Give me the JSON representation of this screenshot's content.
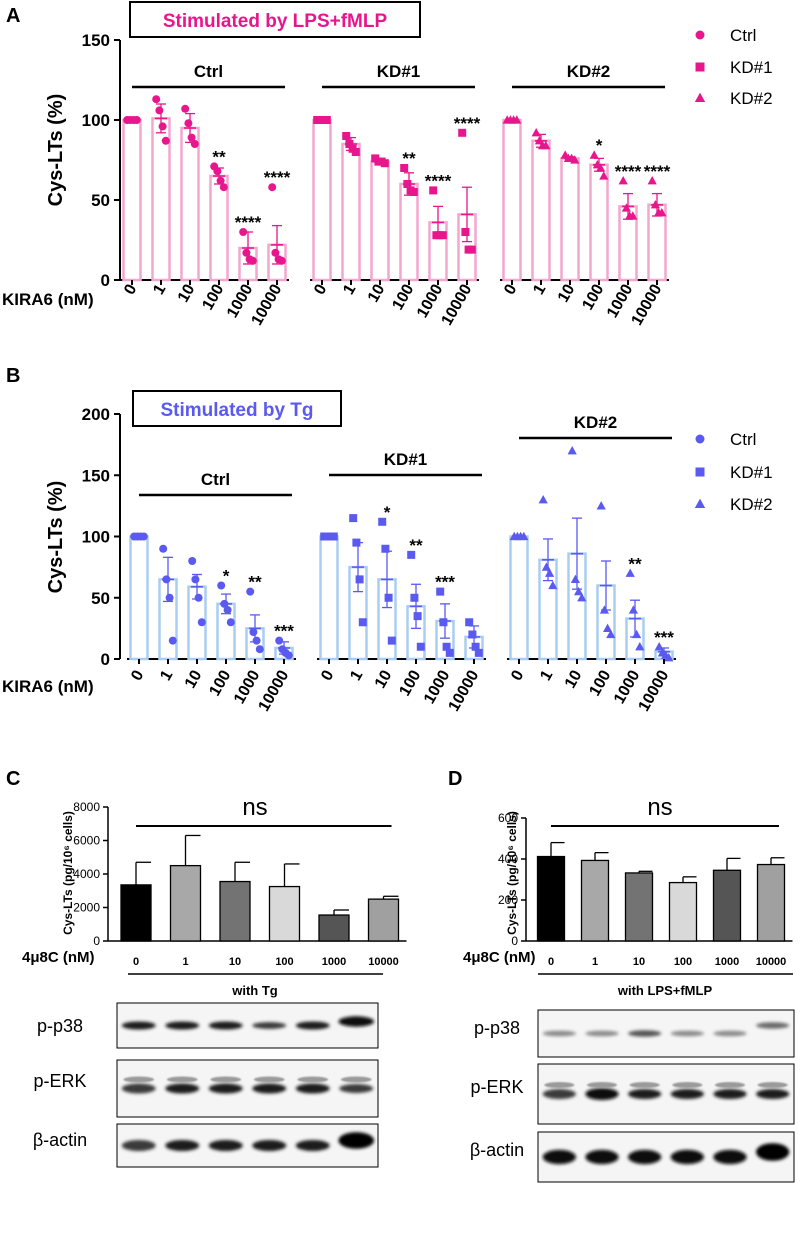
{
  "figure": {
    "panel_labels": [
      "A",
      "B",
      "C",
      "D"
    ],
    "colors": {
      "pink": "#e8168c",
      "pink_light": "#f4a6cf",
      "blue": "#5a5af0",
      "blue_light": "#a9cdf2"
    },
    "blots": {
      "C": [
        {
          "label": "p-p38",
          "style": "p38"
        },
        {
          "label": "p-ERK",
          "style": "erk"
        },
        {
          "label": "β-actin",
          "style": "actin"
        }
      ],
      "D": [
        {
          "label": "p-p38",
          "style": "p38faint"
        },
        {
          "label": "p-ERK",
          "style": "erk"
        },
        {
          "label": "β-actin",
          "style": "actin"
        }
      ]
    }
  },
  "chart_data": [
    {
      "panel": "A",
      "type": "bar",
      "title": "Stimulated by LPS+fMLP",
      "ylabel": "Cys-LTs (%)",
      "xlabel": "KIRA6 (nM)",
      "ylim": [
        0,
        150
      ],
      "yticks": [
        0,
        50,
        100,
        150
      ],
      "categories": [
        "0",
        "1",
        "10",
        "100",
        "1000",
        "10000"
      ],
      "legend": [
        "Ctrl",
        "KD#1",
        "KD#2"
      ],
      "groups": [
        {
          "name": "Ctrl",
          "marker": "circle",
          "values": [
            100,
            101,
            95,
            65,
            20,
            22
          ],
          "errors": [
            0,
            9,
            9,
            5,
            10,
            12
          ],
          "points": [
            [
              100,
              100,
              100,
              100
            ],
            [
              113,
              106,
              96,
              87
            ],
            [
              107,
              98,
              89,
              85
            ],
            [
              71,
              68,
              62,
              58
            ],
            [
              30,
              17,
              13,
              12
            ],
            [
              58,
              17,
              13,
              12
            ]
          ],
          "significance": [
            "",
            "",
            "",
            "**",
            "****",
            "****"
          ]
        },
        {
          "name": "KD#1",
          "marker": "square",
          "values": [
            100,
            85,
            74,
            60,
            36,
            41
          ],
          "errors": [
            0,
            4,
            2,
            7,
            10,
            17
          ],
          "points": [
            [
              100,
              100,
              100,
              100
            ],
            [
              90,
              85,
              82,
              80
            ],
            [
              76,
              74,
              74,
              73
            ],
            [
              70,
              60,
              56,
              55
            ],
            [
              56,
              28,
              28,
              28
            ],
            [
              92,
              30,
              19,
              19
            ]
          ],
          "significance": [
            "",
            "",
            "",
            "**",
            "****",
            "****"
          ]
        },
        {
          "name": "KD#2",
          "marker": "triangle",
          "values": [
            100,
            87,
            76,
            72,
            46,
            47
          ],
          "errors": [
            0,
            4,
            1,
            4,
            8,
            7
          ],
          "points": [
            [
              100,
              100,
              100,
              100
            ],
            [
              92,
              87,
              84,
              84
            ],
            [
              78,
              76,
              76,
              75
            ],
            [
              78,
              72,
              70,
              65
            ],
            [
              62,
              45,
              40,
              40
            ],
            [
              62,
              47,
              42,
              42
            ]
          ],
          "significance": [
            "",
            "",
            "",
            "*",
            "****",
            "****"
          ]
        }
      ]
    },
    {
      "panel": "B",
      "type": "bar",
      "title": "Stimulated by Tg",
      "ylabel": "Cys-LTs (%)",
      "xlabel": "KIRA6 (nM)",
      "ylim": [
        0,
        200
      ],
      "yticks": [
        0,
        50,
        100,
        150,
        200
      ],
      "categories": [
        "0",
        "1",
        "10",
        "100",
        "1000",
        "10000"
      ],
      "legend": [
        "Ctrl",
        "KD#1",
        "KD#2"
      ],
      "groups": [
        {
          "name": "Ctrl",
          "marker": "circle",
          "values": [
            100,
            65,
            59,
            45,
            25,
            9
          ],
          "errors": [
            0,
            18,
            10,
            8,
            11,
            5
          ],
          "points": [
            [
              100,
              100,
              100,
              100
            ],
            [
              90,
              65,
              50,
              15
            ],
            [
              80,
              65,
              50,
              30
            ],
            [
              60,
              45,
              40,
              30
            ],
            [
              55,
              22,
              15,
              8
            ],
            [
              15,
              8,
              5,
              3
            ]
          ],
          "significance": [
            "",
            "",
            "",
            "*",
            "**",
            "***"
          ]
        },
        {
          "name": "KD#1",
          "marker": "square",
          "values": [
            100,
            75,
            65,
            43,
            31,
            18
          ],
          "errors": [
            0,
            20,
            23,
            18,
            14,
            9
          ],
          "points": [
            [
              100,
              100,
              100,
              100
            ],
            [
              115,
              95,
              65,
              30
            ],
            [
              112,
              90,
              50,
              15
            ],
            [
              85,
              50,
              35,
              10
            ],
            [
              55,
              30,
              10,
              5
            ],
            [
              30,
              20,
              10,
              5
            ]
          ],
          "significance": [
            "",
            "",
            "*",
            "**",
            "***",
            ""
          ]
        },
        {
          "name": "KD#2",
          "marker": "triangle",
          "values": [
            100,
            81,
            86,
            60,
            33,
            6
          ],
          "errors": [
            0,
            17,
            29,
            20,
            15,
            3
          ],
          "points": [
            [
              100,
              100,
              100,
              100
            ],
            [
              130,
              75,
              70,
              60
            ],
            [
              170,
              65,
              55,
              50
            ],
            [
              125,
              40,
              25,
              20
            ],
            [
              70,
              40,
              20,
              10
            ],
            [
              10,
              5,
              3,
              1
            ]
          ],
          "significance": [
            "",
            "",
            "",
            "",
            "**",
            "***"
          ]
        }
      ]
    },
    {
      "panel": "C",
      "type": "bar",
      "ylabel": "Cys-LTs (pg/10⁶ cells)",
      "xlabel": "4μ8C (nM)",
      "group_label": "with Tg",
      "significance": "ns",
      "ylim": [
        0,
        8000
      ],
      "yticks": [
        0,
        2000,
        4000,
        6000,
        8000
      ],
      "categories": [
        "0",
        "1",
        "10",
        "100",
        "1000",
        "10000"
      ],
      "values": [
        3350,
        4500,
        3550,
        3250,
        1550,
        2500
      ],
      "errors": [
        1350,
        1800,
        1150,
        1350,
        300,
        170
      ],
      "bar_colors": [
        "#000000",
        "#a8a8a8",
        "#737373",
        "#d9d9d9",
        "#555555",
        "#a0a0a0"
      ]
    },
    {
      "panel": "D",
      "type": "bar",
      "ylabel": "Cys-LTs (pg/10⁶ cells)",
      "xlabel": "4μ8C (nM)",
      "group_label": "with LPS+fMLP",
      "significance": "ns",
      "ylim": [
        0,
        600
      ],
      "yticks": [
        0,
        200,
        400,
        600
      ],
      "categories": [
        "0",
        "1",
        "10",
        "100",
        "1000",
        "10000"
      ],
      "values": [
        412,
        393,
        332,
        285,
        345,
        373
      ],
      "errors": [
        68,
        38,
        8,
        28,
        58,
        33
      ],
      "bar_colors": [
        "#000000",
        "#a8a8a8",
        "#737373",
        "#d9d9d9",
        "#555555",
        "#a0a0a0"
      ]
    }
  ]
}
